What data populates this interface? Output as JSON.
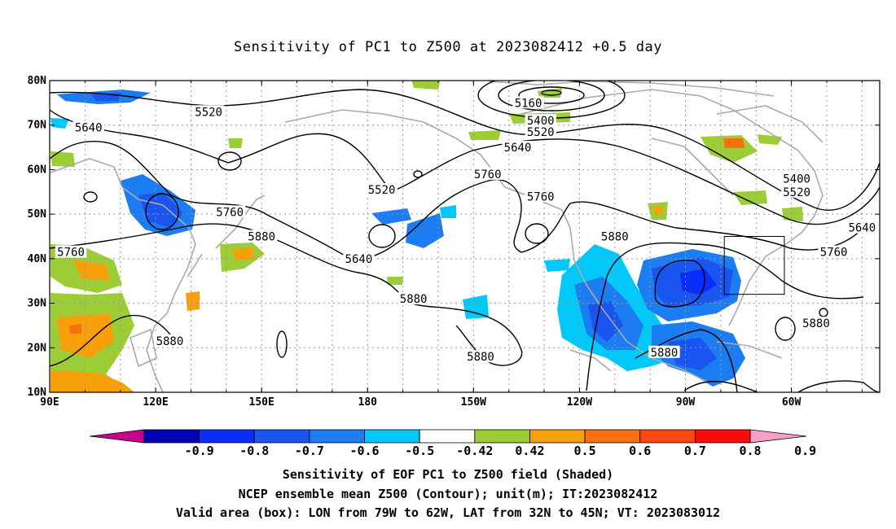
{
  "title": "Sensitivity of PC1 to Z500 at 2023082412 +0.5 day",
  "map": {
    "lat_labels": [
      "80N",
      "70N",
      "60N",
      "50N",
      "40N",
      "30N",
      "20N",
      "10N"
    ],
    "lon_labels": [
      "90E",
      "120E",
      "150E",
      "180",
      "150W",
      "120W",
      "90W",
      "60W"
    ],
    "extent": {
      "lon_min": 90,
      "lon_max": 325,
      "lat_min": 10,
      "lat_max": 80
    },
    "contour_labels": [
      {
        "text": "5520",
        "lon": 135,
        "lat": 73
      },
      {
        "text": "5640",
        "lon": 101,
        "lat": 69.5
      },
      {
        "text": "5160",
        "lon": 225.5,
        "lat": 75
      },
      {
        "text": "5400",
        "lon": 229,
        "lat": 71
      },
      {
        "text": "5520",
        "lon": 229,
        "lat": 68.5
      },
      {
        "text": "5640",
        "lon": 222.5,
        "lat": 65
      },
      {
        "text": "5760",
        "lon": 214,
        "lat": 59
      },
      {
        "text": "5520",
        "lon": 184,
        "lat": 55.5
      },
      {
        "text": "5760",
        "lon": 229,
        "lat": 54
      },
      {
        "text": "5400",
        "lon": 301.5,
        "lat": 58
      },
      {
        "text": "5520",
        "lon": 301.5,
        "lat": 55
      },
      {
        "text": "5640",
        "lon": 320,
        "lat": 47
      },
      {
        "text": "5760",
        "lon": 141,
        "lat": 50.5
      },
      {
        "text": "5880",
        "lon": 150,
        "lat": 45
      },
      {
        "text": "5760",
        "lon": 96,
        "lat": 41.5
      },
      {
        "text": "5640",
        "lon": 177.5,
        "lat": 40
      },
      {
        "text": "5880",
        "lon": 250,
        "lat": 45
      },
      {
        "text": "5760",
        "lon": 312,
        "lat": 41.5
      },
      {
        "text": "5880",
        "lon": 193,
        "lat": 31
      },
      {
        "text": "5880",
        "lon": 124,
        "lat": 21.5
      },
      {
        "text": "5880",
        "lon": 212,
        "lat": 18
      },
      {
        "text": "5880",
        "lon": 264,
        "lat": 19
      },
      {
        "text": "5880",
        "lon": 307,
        "lat": 25.5
      }
    ],
    "valid_box": {
      "lon_min": 281,
      "lon_max": 298,
      "lat_min": 32,
      "lat_max": 45
    }
  },
  "colorbar": {
    "labels": [
      "-0.9",
      "-0.8",
      "-0.7",
      "-0.6",
      "-0.5",
      "-0.42",
      "0.42",
      "0.5",
      "0.6",
      "0.7",
      "0.8",
      "0.9"
    ],
    "colors": [
      "#0000b4",
      "#0a2dfa",
      "#1a55f0",
      "#1c7cf2",
      "#00c8f8",
      "#ffffff",
      "#9ccd37",
      "#f7a00c",
      "#f87010",
      "#fa4810",
      "#fa0a0a"
    ],
    "low_end_color": "#c80090",
    "high_end_color": "#f5a0c8"
  },
  "caption": {
    "line1": "Sensitivity of EOF PC1 to Z500 field (Shaded)",
    "line2": "NCEP ensemble mean Z500 (Contour); unit(m); IT:2023082412",
    "line3": "Valid area (box): LON from 79W to 62W, LAT from 32N to 45N; VT: 2023083012"
  }
}
